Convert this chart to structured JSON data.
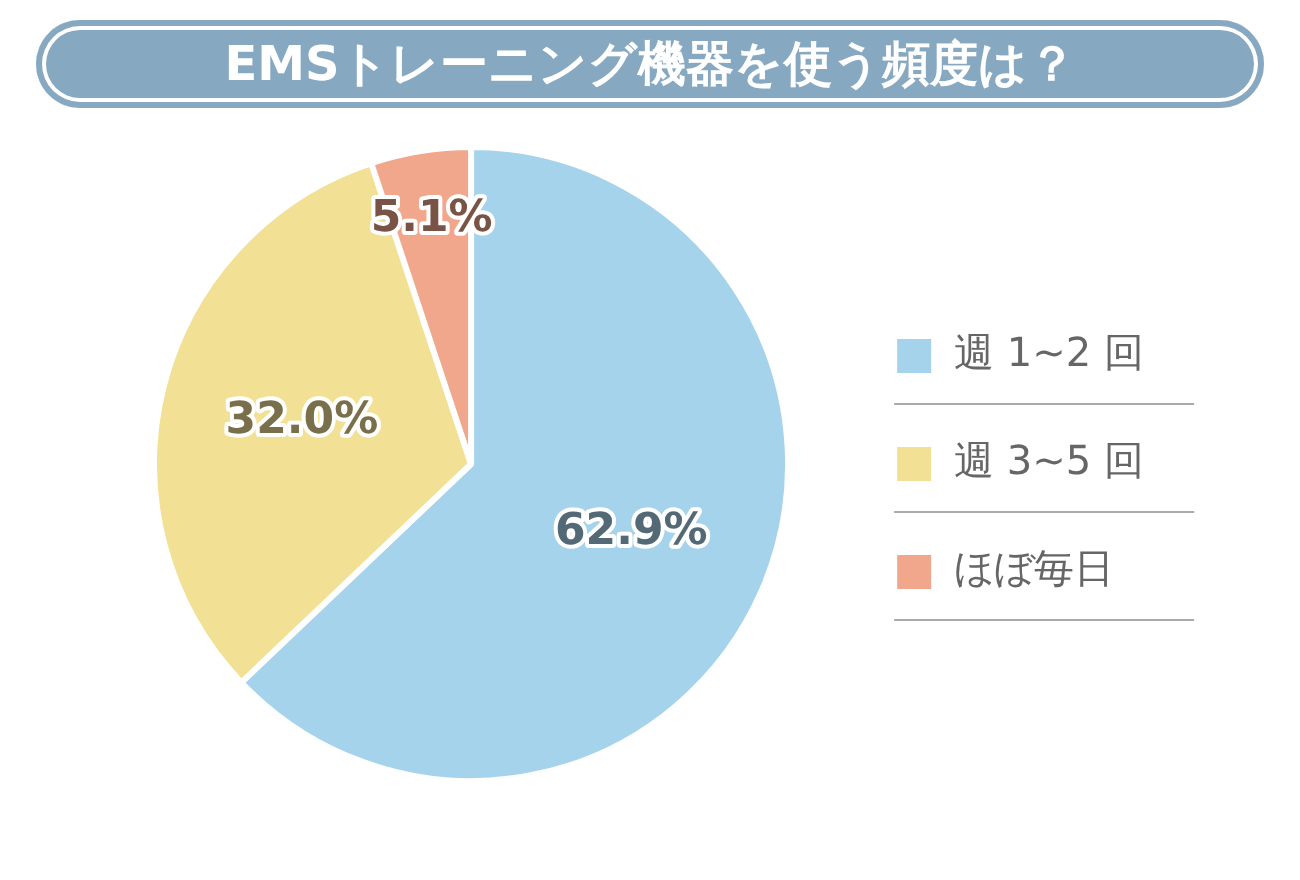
{
  "chart_data": {
    "type": "pie",
    "title": "EMSトレーニング機器を使う頻度は？",
    "categories": [
      "週 1~2 回",
      "週 3~5 回",
      "ほぼ毎日"
    ],
    "values": [
      62.9,
      32.0,
      5.1
    ],
    "colors": [
      "#a5d3ec",
      "#f2e095",
      "#f1a78c"
    ],
    "legend": "right",
    "value_labels": [
      "62.9%",
      "32.0%",
      "5.1%"
    ]
  }
}
